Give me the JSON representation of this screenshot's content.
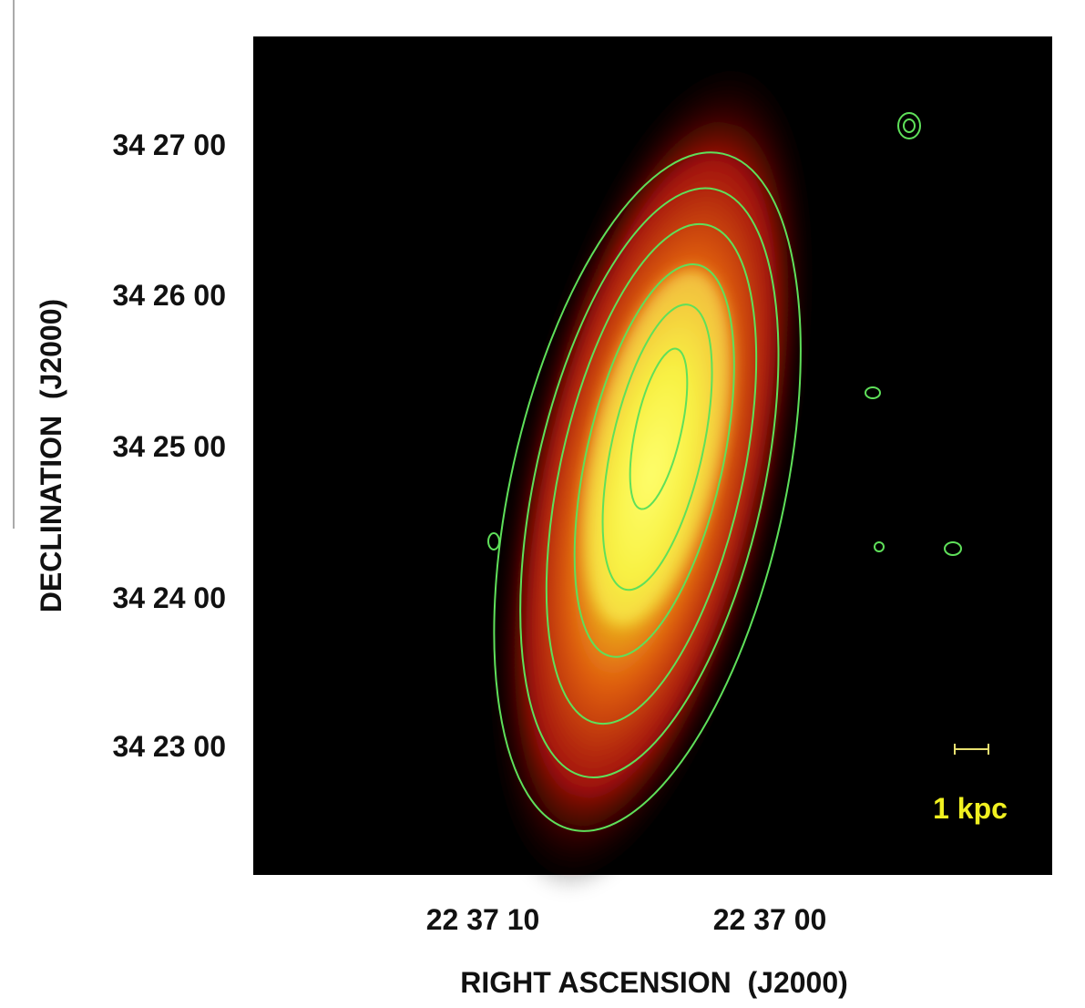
{
  "axes": {
    "x_label": "RIGHT ASCENSION  (J2000)",
    "y_label": "DECLINATION  (J2000)",
    "x_ticks": [
      "22 37 10",
      "22 37 00"
    ],
    "y_ticks": [
      "34 27 00",
      "34 26 00",
      "34 25 00",
      "34 24 00",
      "34 23 00"
    ]
  },
  "scale_bar": {
    "label": "1 kpc"
  }
}
